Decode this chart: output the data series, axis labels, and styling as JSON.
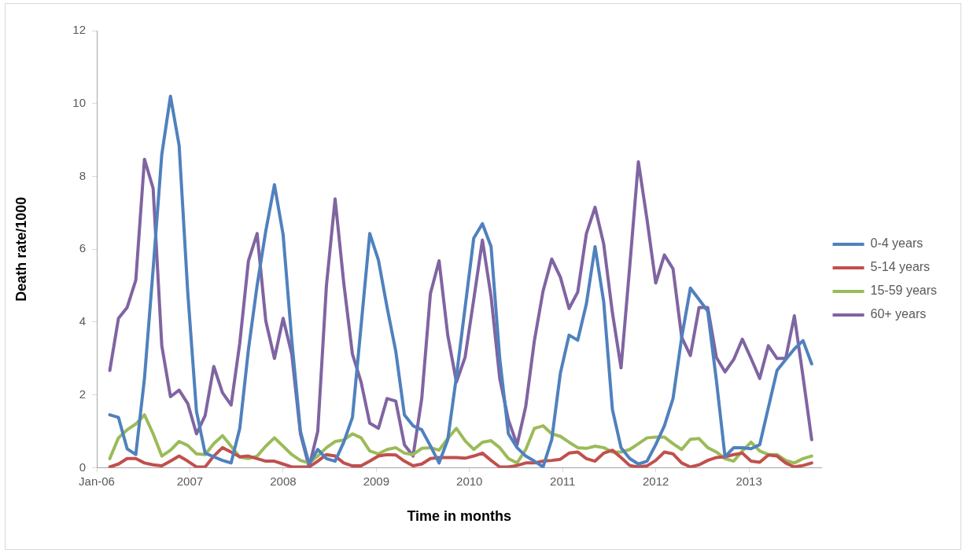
{
  "chart_data": {
    "type": "line",
    "xlabel": "Time in months",
    "ylabel": "Death rate/1000",
    "x": [
      2006.14,
      2006.233,
      2006.326,
      2006.419,
      2006.512,
      2006.605,
      2006.698,
      2006.791,
      2006.884,
      2006.977,
      2007.07,
      2007.163,
      2007.256,
      2007.349,
      2007.442,
      2007.535,
      2007.628,
      2007.721,
      2007.814,
      2007.907,
      2008.0,
      2008.093,
      2008.186,
      2008.279,
      2008.372,
      2008.465,
      2008.558,
      2008.651,
      2008.744,
      2008.837,
      2008.93,
      2009.023,
      2009.116,
      2009.209,
      2009.302,
      2009.395,
      2009.488,
      2009.581,
      2009.674,
      2009.767,
      2009.86,
      2009.953,
      2010.046,
      2010.139,
      2010.232,
      2010.325,
      2010.418,
      2010.511,
      2010.604,
      2010.697,
      2010.79,
      2010.883,
      2010.976,
      2011.069,
      2011.162,
      2011.255,
      2011.348,
      2011.441,
      2011.534,
      2011.627,
      2011.72,
      2011.813,
      2011.906,
      2011.999,
      2012.092,
      2012.185,
      2012.278,
      2012.371,
      2012.464,
      2012.557,
      2012.65,
      2012.743,
      2012.836,
      2012.929,
      2013.022,
      2013.115,
      2013.208,
      2013.301,
      2013.394,
      2013.487,
      2013.58,
      2013.673
    ],
    "series": [
      {
        "name": "0-4 years",
        "color": "#4f81bd",
        "values": [
          1.45,
          1.38,
          0.52,
          0.36,
          2.45,
          5.45,
          8.6,
          10.2,
          8.85,
          4.8,
          1.55,
          0.4,
          0.3,
          0.2,
          0.13,
          1.08,
          3.25,
          5.0,
          6.5,
          7.77,
          6.4,
          3.5,
          1.0,
          0.1,
          0.5,
          0.25,
          0.18,
          0.7,
          1.38,
          3.9,
          6.43,
          5.7,
          4.4,
          3.2,
          1.45,
          1.15,
          1.04,
          0.6,
          0.13,
          0.77,
          2.5,
          4.4,
          6.3,
          6.7,
          6.07,
          3.0,
          0.93,
          0.55,
          0.32,
          0.18,
          0.02,
          0.77,
          2.6,
          3.64,
          3.5,
          4.5,
          6.07,
          4.55,
          1.6,
          0.55,
          0.25,
          0.1,
          0.18,
          0.63,
          1.15,
          1.9,
          3.58,
          4.93,
          4.62,
          4.3,
          2.4,
          0.3,
          0.55,
          0.55,
          0.52,
          0.63,
          1.65,
          2.67,
          2.97,
          3.26,
          3.49,
          2.85
        ]
      },
      {
        "name": "5-14 years",
        "color": "#c0504d",
        "values": [
          0.02,
          0.1,
          0.25,
          0.25,
          0.13,
          0.08,
          0.05,
          0.18,
          0.32,
          0.18,
          0.02,
          0.02,
          0.32,
          0.55,
          0.43,
          0.3,
          0.32,
          0.25,
          0.18,
          0.18,
          0.1,
          0.02,
          0.02,
          0.02,
          0.18,
          0.36,
          0.32,
          0.13,
          0.05,
          0.05,
          0.18,
          0.32,
          0.36,
          0.35,
          0.18,
          0.05,
          0.1,
          0.25,
          0.28,
          0.28,
          0.28,
          0.26,
          0.32,
          0.4,
          0.2,
          0.02,
          0.02,
          0.06,
          0.13,
          0.13,
          0.18,
          0.2,
          0.23,
          0.4,
          0.43,
          0.25,
          0.18,
          0.4,
          0.48,
          0.28,
          0.06,
          0.02,
          0.05,
          0.2,
          0.43,
          0.38,
          0.13,
          0.02,
          0.08,
          0.2,
          0.28,
          0.3,
          0.36,
          0.4,
          0.18,
          0.15,
          0.35,
          0.32,
          0.13,
          0.02,
          0.06,
          0.13
        ]
      },
      {
        "name": "15-59 years",
        "color": "#9bbb59",
        "values": [
          0.25,
          0.82,
          1.04,
          1.2,
          1.45,
          0.93,
          0.32,
          0.48,
          0.72,
          0.61,
          0.38,
          0.36,
          0.66,
          0.88,
          0.59,
          0.29,
          0.25,
          0.32,
          0.59,
          0.82,
          0.59,
          0.36,
          0.2,
          0.13,
          0.32,
          0.55,
          0.72,
          0.76,
          0.93,
          0.82,
          0.46,
          0.38,
          0.5,
          0.55,
          0.4,
          0.36,
          0.53,
          0.55,
          0.48,
          0.8,
          1.08,
          0.74,
          0.5,
          0.7,
          0.74,
          0.55,
          0.25,
          0.13,
          0.5,
          1.08,
          1.15,
          0.93,
          0.86,
          0.7,
          0.55,
          0.53,
          0.59,
          0.55,
          0.43,
          0.43,
          0.5,
          0.66,
          0.82,
          0.84,
          0.84,
          0.66,
          0.5,
          0.78,
          0.8,
          0.55,
          0.43,
          0.25,
          0.18,
          0.46,
          0.7,
          0.46,
          0.36,
          0.36,
          0.2,
          0.13,
          0.25,
          0.32
        ]
      },
      {
        "name": "60+ years",
        "color": "#8064a2",
        "values": [
          2.67,
          4.1,
          4.4,
          5.15,
          8.47,
          7.67,
          3.35,
          1.95,
          2.13,
          1.76,
          0.93,
          1.43,
          2.78,
          2.06,
          1.72,
          3.42,
          5.68,
          6.43,
          4.03,
          3.0,
          4.1,
          3.12,
          0.93,
          0.02,
          1.0,
          5.0,
          7.38,
          5.07,
          3.12,
          2.35,
          1.22,
          1.08,
          1.9,
          1.83,
          0.63,
          0.32,
          1.9,
          4.78,
          5.68,
          3.64,
          2.35,
          3.03,
          4.62,
          6.25,
          4.7,
          2.45,
          1.31,
          0.63,
          1.68,
          3.49,
          4.85,
          5.73,
          5.23,
          4.37,
          4.82,
          6.43,
          7.15,
          6.14,
          4.26,
          2.74,
          5.52,
          8.4,
          6.81,
          5.07,
          5.84,
          5.46,
          3.58,
          3.08,
          4.4,
          4.4,
          3.03,
          2.63,
          2.97,
          3.53,
          3.0,
          2.45,
          3.35,
          3.0,
          3.0,
          4.17,
          2.5,
          0.77
        ]
      }
    ],
    "xlim": [
      2006,
      2013.78
    ],
    "xticks": [
      {
        "value": 2006,
        "label": "Jan-06"
      },
      2007,
      2008,
      2009,
      2010,
      2011,
      2012,
      2013
    ],
    "ylim": [
      0,
      12
    ],
    "yticks": [
      0,
      2,
      4,
      6,
      8,
      10,
      12
    ],
    "grid": false,
    "legend": "right",
    "marker": "none",
    "line_style": "solid"
  }
}
